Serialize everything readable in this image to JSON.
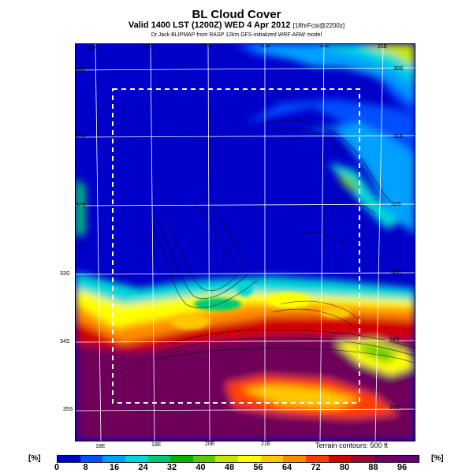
{
  "header": {
    "title": "BL Cloud Cover",
    "subtitle_main": "Valid 1400 LST (1200Z) WED 4 Apr 2012",
    "subtitle_small": "[18hrFcst@2200z]",
    "credit": "Dr.Jack BLIPMAP from RASP 12km GFS-initialized WRF-ARW model"
  },
  "axes": {
    "top_lon": [
      "18E",
      "19E",
      "20E",
      "21E",
      "22E",
      "23E"
    ],
    "bottom_lon": [
      "18E",
      "19E",
      "20E",
      "21E"
    ],
    "left_lat": [
      "30S",
      "31S",
      "32S",
      "33S",
      "34S",
      "35S"
    ],
    "right_lat": [
      "30S",
      "31S",
      "32S",
      "33S",
      "34S",
      "35S"
    ]
  },
  "note": "Terrain contours: 500 ft",
  "colorbar": {
    "unit_label": "[%]",
    "labels": [
      "0",
      "8",
      "16",
      "24",
      "32",
      "40",
      "48",
      "56",
      "64",
      "72",
      "80",
      "88",
      "96"
    ],
    "colors": [
      "#0000c8",
      "#0050ff",
      "#00a0ff",
      "#00d8d8",
      "#00c878",
      "#00b400",
      "#64c800",
      "#c8e600",
      "#ffff00",
      "#ffc800",
      "#ff8c00",
      "#ff3c00",
      "#d20000",
      "#a00032",
      "#6e005a",
      "#600070"
    ]
  }
}
